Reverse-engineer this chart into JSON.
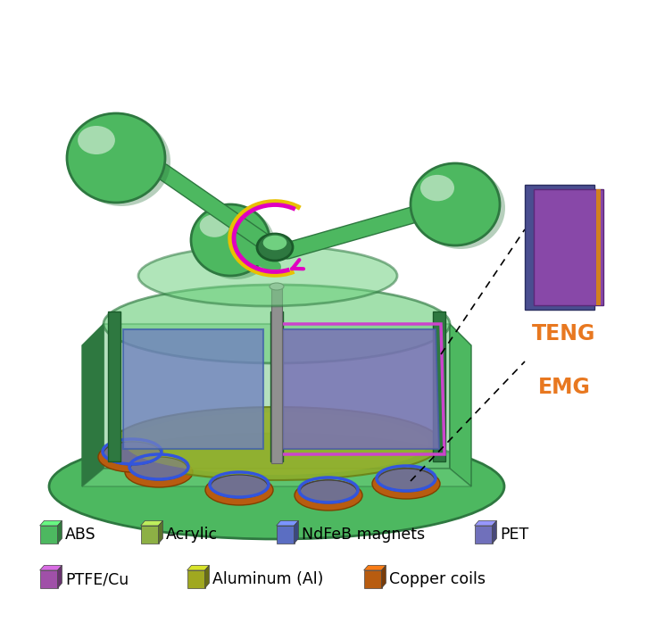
{
  "legend_items": [
    {
      "label": "ABS",
      "color": "#4DB860"
    },
    {
      "label": "Acrylic",
      "color": "#8DB045"
    },
    {
      "label": "NdFeB magnets",
      "color": "#5B6EC2"
    },
    {
      "label": "PET",
      "color": "#7070BB"
    },
    {
      "label": "PTFE/Cu",
      "color": "#A050A8"
    },
    {
      "label": "Aluminum (Al)",
      "color": "#A0A820"
    },
    {
      "label": "Copper coils",
      "color": "#B85C10"
    }
  ],
  "teng_label": "TENG",
  "emg_label": "EMG",
  "label_color": "#E87820",
  "abs_green": "#4DB860",
  "abs_green_dark": "#2E7840",
  "abs_green_light": "#70D080",
  "abs_green_trans": "#80C890",
  "acrylic_olive": "#8DAA28",
  "copper_orange": "#B85C10",
  "magnet_blue": "#4A5AAA",
  "magnet_gray": "#707090",
  "ptfe_purple": "#9050A0",
  "pet_indigo": "#505090",
  "shaft_gray": "#909090",
  "arrow_magenta": "#E000C0",
  "arrow_yellow": "#E8C000",
  "pink_frame": "#CC44CC",
  "teng_blue": "#7080C0"
}
